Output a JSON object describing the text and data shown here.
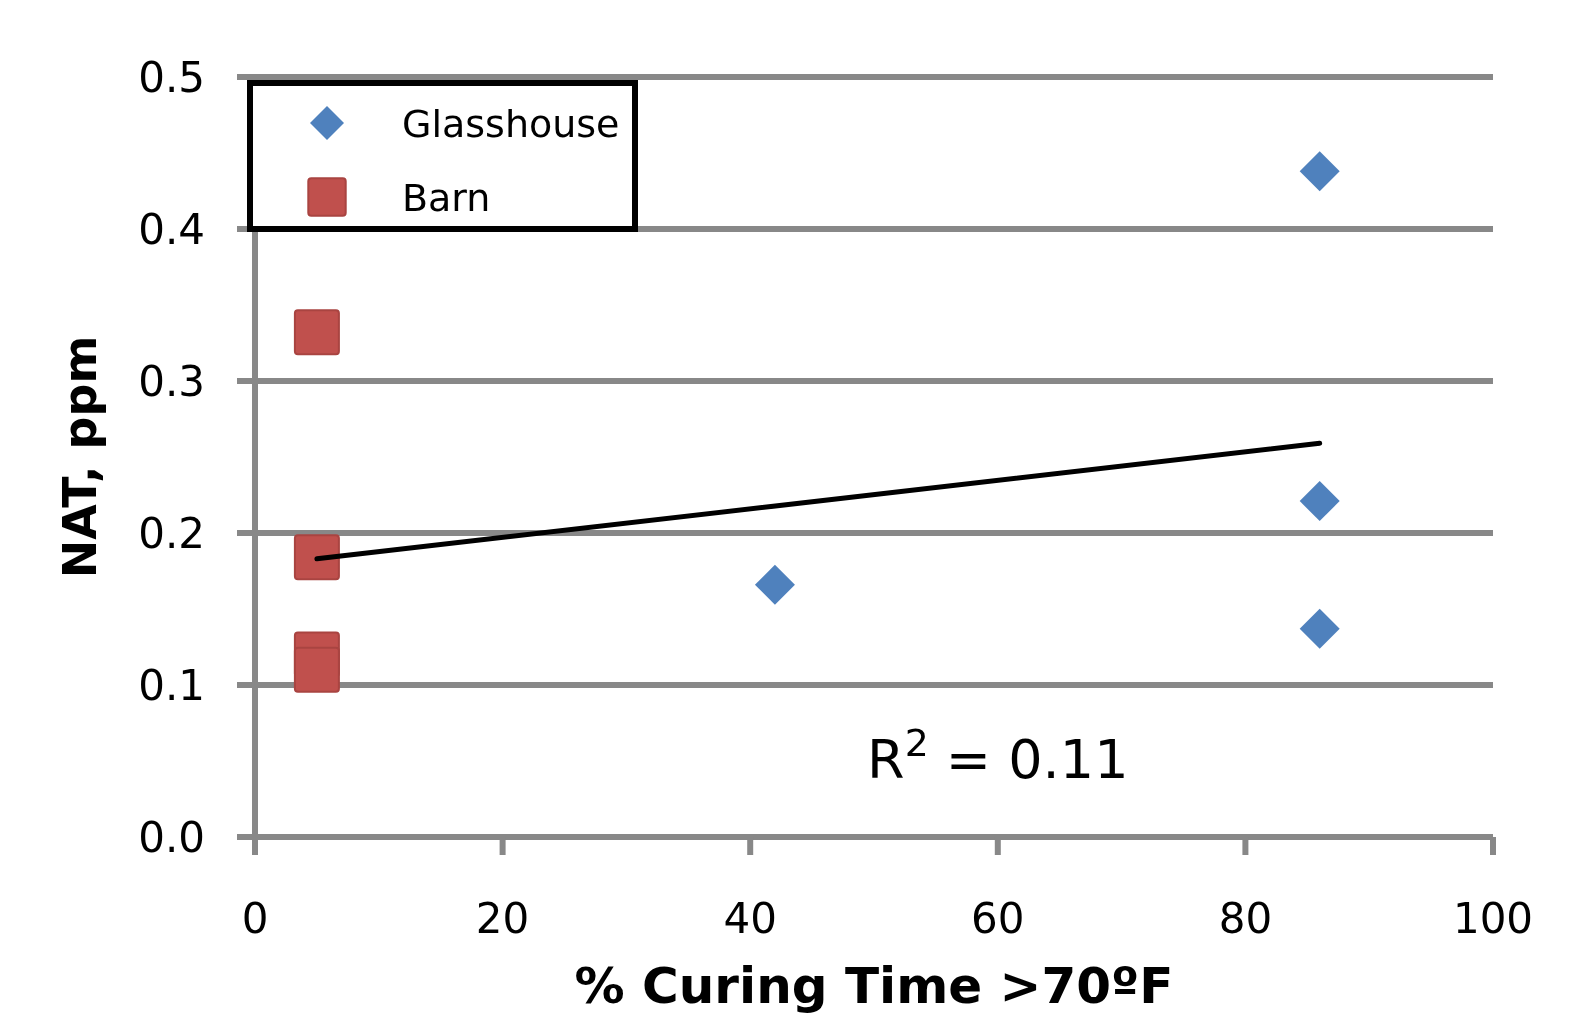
{
  "chart_data": {
    "type": "scatter",
    "xlabel": "% Curing Time >70ºF",
    "ylabel": "NAT, ppm",
    "xlim": [
      0,
      100
    ],
    "xticks": [
      0,
      20,
      40,
      60,
      80,
      100
    ],
    "ylim": [
      0,
      0.5
    ],
    "yticks": [
      {
        "value": 0,
        "label": "0.0"
      },
      0.1,
      0.2,
      0.3,
      0.4,
      0.5
    ],
    "grid": "y",
    "legend": "top left",
    "series": [
      {
        "name": "Glasshouse",
        "color": "#4f81bd",
        "marker": "diamond",
        "x": [
          86,
          86,
          86,
          42
        ],
        "values": [
          0.438,
          0.221,
          0.137,
          0.166
        ]
      },
      {
        "name": "Barn",
        "color": "#c0504d",
        "marker": "square",
        "x": [
          5,
          5,
          5,
          5
        ],
        "values": [
          0.332,
          0.184,
          0.12,
          0.11
        ]
      },
      {
        "type": "line",
        "color": "#000000",
        "marker": "none",
        "x": [
          5,
          86
        ],
        "values": [
          0.183,
          0.259
        ]
      }
    ],
    "annotations": [
      "R$^{2}$ = 0.11"
    ]
  }
}
